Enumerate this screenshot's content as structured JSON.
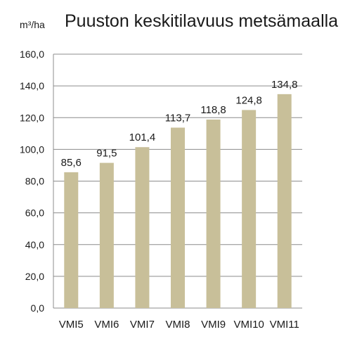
{
  "chart_data": {
    "type": "bar",
    "title": "Puuston keskitilavuus metsämaalla",
    "ylabel": "m³/ha",
    "xlabel": "",
    "categories": [
      "VMI5",
      "VMI6",
      "VMI7",
      "VMI8",
      "VMI9",
      "VMI10",
      "VMI11"
    ],
    "values": [
      85.6,
      91.5,
      101.4,
      113.7,
      118.8,
      124.8,
      134.8
    ],
    "data_labels": [
      "85,6",
      "91,5",
      "101,4",
      "113,7",
      "118,8",
      "124,8",
      "134,8"
    ],
    "ylim": [
      0,
      160
    ],
    "yticks": [
      0,
      20,
      40,
      60,
      80,
      100,
      120,
      140,
      160
    ],
    "ytick_labels": [
      "0,0",
      "20,0",
      "40,0",
      "60,0",
      "80,0",
      "100,0",
      "120,0",
      "140,0",
      "160,0"
    ],
    "grid": true,
    "legend": "none",
    "bar_color": "#c8bf99"
  }
}
